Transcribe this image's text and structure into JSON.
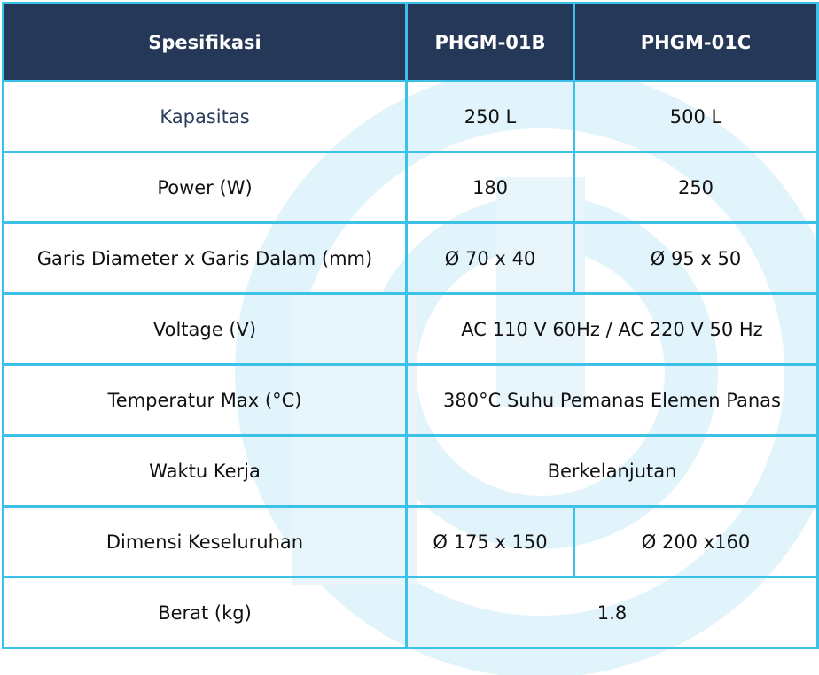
{
  "table": {
    "header": [
      "Spesifikasi",
      "PHGM-01B",
      "PHGM-01C"
    ],
    "rows": [
      [
        "Kapasitas",
        "250 L",
        "500 L"
      ],
      [
        "Power (W)",
        "180",
        "250"
      ],
      [
        "Garis Diameter x Garis Dalam (mm)",
        "Ø 70 x 40",
        "Ø 95 x 50"
      ],
      [
        "Voltage (V)",
        "AC 110 V 60Hz / AC 220 V 50 Hz"
      ],
      [
        "Temperatur Max (°C)",
        "380°C Suhu Pemanas Elemen Panas"
      ],
      [
        "Waktu Kerja",
        "Berkelanjutan"
      ],
      [
        "Dimensi Keseluruhan",
        "Ø 175 x 150",
        "Ø 200 x160"
      ],
      [
        "Berat (kg)",
        "1.8"
      ]
    ]
  }
}
